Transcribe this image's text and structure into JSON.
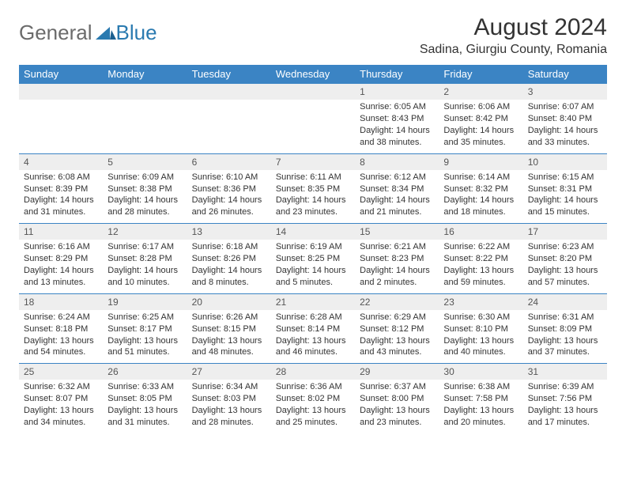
{
  "brand": {
    "word1": "General",
    "word2": "Blue"
  },
  "title": "August 2024",
  "location": "Sadina, Giurgiu County, Romania",
  "colors": {
    "header_bg": "#3b84c4",
    "header_text": "#ffffff",
    "daynum_bg": "#eeeeee",
    "border": "#3b84c4",
    "text": "#333333",
    "logo_gray": "#6b6b6b",
    "logo_blue": "#2a7ab0"
  },
  "weekdays": [
    "Sunday",
    "Monday",
    "Tuesday",
    "Wednesday",
    "Thursday",
    "Friday",
    "Saturday"
  ],
  "weeks": [
    {
      "nums": [
        "",
        "",
        "",
        "",
        "1",
        "2",
        "3"
      ],
      "cells": [
        null,
        null,
        null,
        null,
        {
          "sunrise": "Sunrise: 6:05 AM",
          "sunset": "Sunset: 8:43 PM",
          "day1": "Daylight: 14 hours",
          "day2": "and 38 minutes."
        },
        {
          "sunrise": "Sunrise: 6:06 AM",
          "sunset": "Sunset: 8:42 PM",
          "day1": "Daylight: 14 hours",
          "day2": "and 35 minutes."
        },
        {
          "sunrise": "Sunrise: 6:07 AM",
          "sunset": "Sunset: 8:40 PM",
          "day1": "Daylight: 14 hours",
          "day2": "and 33 minutes."
        }
      ]
    },
    {
      "nums": [
        "4",
        "5",
        "6",
        "7",
        "8",
        "9",
        "10"
      ],
      "cells": [
        {
          "sunrise": "Sunrise: 6:08 AM",
          "sunset": "Sunset: 8:39 PM",
          "day1": "Daylight: 14 hours",
          "day2": "and 31 minutes."
        },
        {
          "sunrise": "Sunrise: 6:09 AM",
          "sunset": "Sunset: 8:38 PM",
          "day1": "Daylight: 14 hours",
          "day2": "and 28 minutes."
        },
        {
          "sunrise": "Sunrise: 6:10 AM",
          "sunset": "Sunset: 8:36 PM",
          "day1": "Daylight: 14 hours",
          "day2": "and 26 minutes."
        },
        {
          "sunrise": "Sunrise: 6:11 AM",
          "sunset": "Sunset: 8:35 PM",
          "day1": "Daylight: 14 hours",
          "day2": "and 23 minutes."
        },
        {
          "sunrise": "Sunrise: 6:12 AM",
          "sunset": "Sunset: 8:34 PM",
          "day1": "Daylight: 14 hours",
          "day2": "and 21 minutes."
        },
        {
          "sunrise": "Sunrise: 6:14 AM",
          "sunset": "Sunset: 8:32 PM",
          "day1": "Daylight: 14 hours",
          "day2": "and 18 minutes."
        },
        {
          "sunrise": "Sunrise: 6:15 AM",
          "sunset": "Sunset: 8:31 PM",
          "day1": "Daylight: 14 hours",
          "day2": "and 15 minutes."
        }
      ]
    },
    {
      "nums": [
        "11",
        "12",
        "13",
        "14",
        "15",
        "16",
        "17"
      ],
      "cells": [
        {
          "sunrise": "Sunrise: 6:16 AM",
          "sunset": "Sunset: 8:29 PM",
          "day1": "Daylight: 14 hours",
          "day2": "and 13 minutes."
        },
        {
          "sunrise": "Sunrise: 6:17 AM",
          "sunset": "Sunset: 8:28 PM",
          "day1": "Daylight: 14 hours",
          "day2": "and 10 minutes."
        },
        {
          "sunrise": "Sunrise: 6:18 AM",
          "sunset": "Sunset: 8:26 PM",
          "day1": "Daylight: 14 hours",
          "day2": "and 8 minutes."
        },
        {
          "sunrise": "Sunrise: 6:19 AM",
          "sunset": "Sunset: 8:25 PM",
          "day1": "Daylight: 14 hours",
          "day2": "and 5 minutes."
        },
        {
          "sunrise": "Sunrise: 6:21 AM",
          "sunset": "Sunset: 8:23 PM",
          "day1": "Daylight: 14 hours",
          "day2": "and 2 minutes."
        },
        {
          "sunrise": "Sunrise: 6:22 AM",
          "sunset": "Sunset: 8:22 PM",
          "day1": "Daylight: 13 hours",
          "day2": "and 59 minutes."
        },
        {
          "sunrise": "Sunrise: 6:23 AM",
          "sunset": "Sunset: 8:20 PM",
          "day1": "Daylight: 13 hours",
          "day2": "and 57 minutes."
        }
      ]
    },
    {
      "nums": [
        "18",
        "19",
        "20",
        "21",
        "22",
        "23",
        "24"
      ],
      "cells": [
        {
          "sunrise": "Sunrise: 6:24 AM",
          "sunset": "Sunset: 8:18 PM",
          "day1": "Daylight: 13 hours",
          "day2": "and 54 minutes."
        },
        {
          "sunrise": "Sunrise: 6:25 AM",
          "sunset": "Sunset: 8:17 PM",
          "day1": "Daylight: 13 hours",
          "day2": "and 51 minutes."
        },
        {
          "sunrise": "Sunrise: 6:26 AM",
          "sunset": "Sunset: 8:15 PM",
          "day1": "Daylight: 13 hours",
          "day2": "and 48 minutes."
        },
        {
          "sunrise": "Sunrise: 6:28 AM",
          "sunset": "Sunset: 8:14 PM",
          "day1": "Daylight: 13 hours",
          "day2": "and 46 minutes."
        },
        {
          "sunrise": "Sunrise: 6:29 AM",
          "sunset": "Sunset: 8:12 PM",
          "day1": "Daylight: 13 hours",
          "day2": "and 43 minutes."
        },
        {
          "sunrise": "Sunrise: 6:30 AM",
          "sunset": "Sunset: 8:10 PM",
          "day1": "Daylight: 13 hours",
          "day2": "and 40 minutes."
        },
        {
          "sunrise": "Sunrise: 6:31 AM",
          "sunset": "Sunset: 8:09 PM",
          "day1": "Daylight: 13 hours",
          "day2": "and 37 minutes."
        }
      ]
    },
    {
      "nums": [
        "25",
        "26",
        "27",
        "28",
        "29",
        "30",
        "31"
      ],
      "cells": [
        {
          "sunrise": "Sunrise: 6:32 AM",
          "sunset": "Sunset: 8:07 PM",
          "day1": "Daylight: 13 hours",
          "day2": "and 34 minutes."
        },
        {
          "sunrise": "Sunrise: 6:33 AM",
          "sunset": "Sunset: 8:05 PM",
          "day1": "Daylight: 13 hours",
          "day2": "and 31 minutes."
        },
        {
          "sunrise": "Sunrise: 6:34 AM",
          "sunset": "Sunset: 8:03 PM",
          "day1": "Daylight: 13 hours",
          "day2": "and 28 minutes."
        },
        {
          "sunrise": "Sunrise: 6:36 AM",
          "sunset": "Sunset: 8:02 PM",
          "day1": "Daylight: 13 hours",
          "day2": "and 25 minutes."
        },
        {
          "sunrise": "Sunrise: 6:37 AM",
          "sunset": "Sunset: 8:00 PM",
          "day1": "Daylight: 13 hours",
          "day2": "and 23 minutes."
        },
        {
          "sunrise": "Sunrise: 6:38 AM",
          "sunset": "Sunset: 7:58 PM",
          "day1": "Daylight: 13 hours",
          "day2": "and 20 minutes."
        },
        {
          "sunrise": "Sunrise: 6:39 AM",
          "sunset": "Sunset: 7:56 PM",
          "day1": "Daylight: 13 hours",
          "day2": "and 17 minutes."
        }
      ]
    }
  ]
}
